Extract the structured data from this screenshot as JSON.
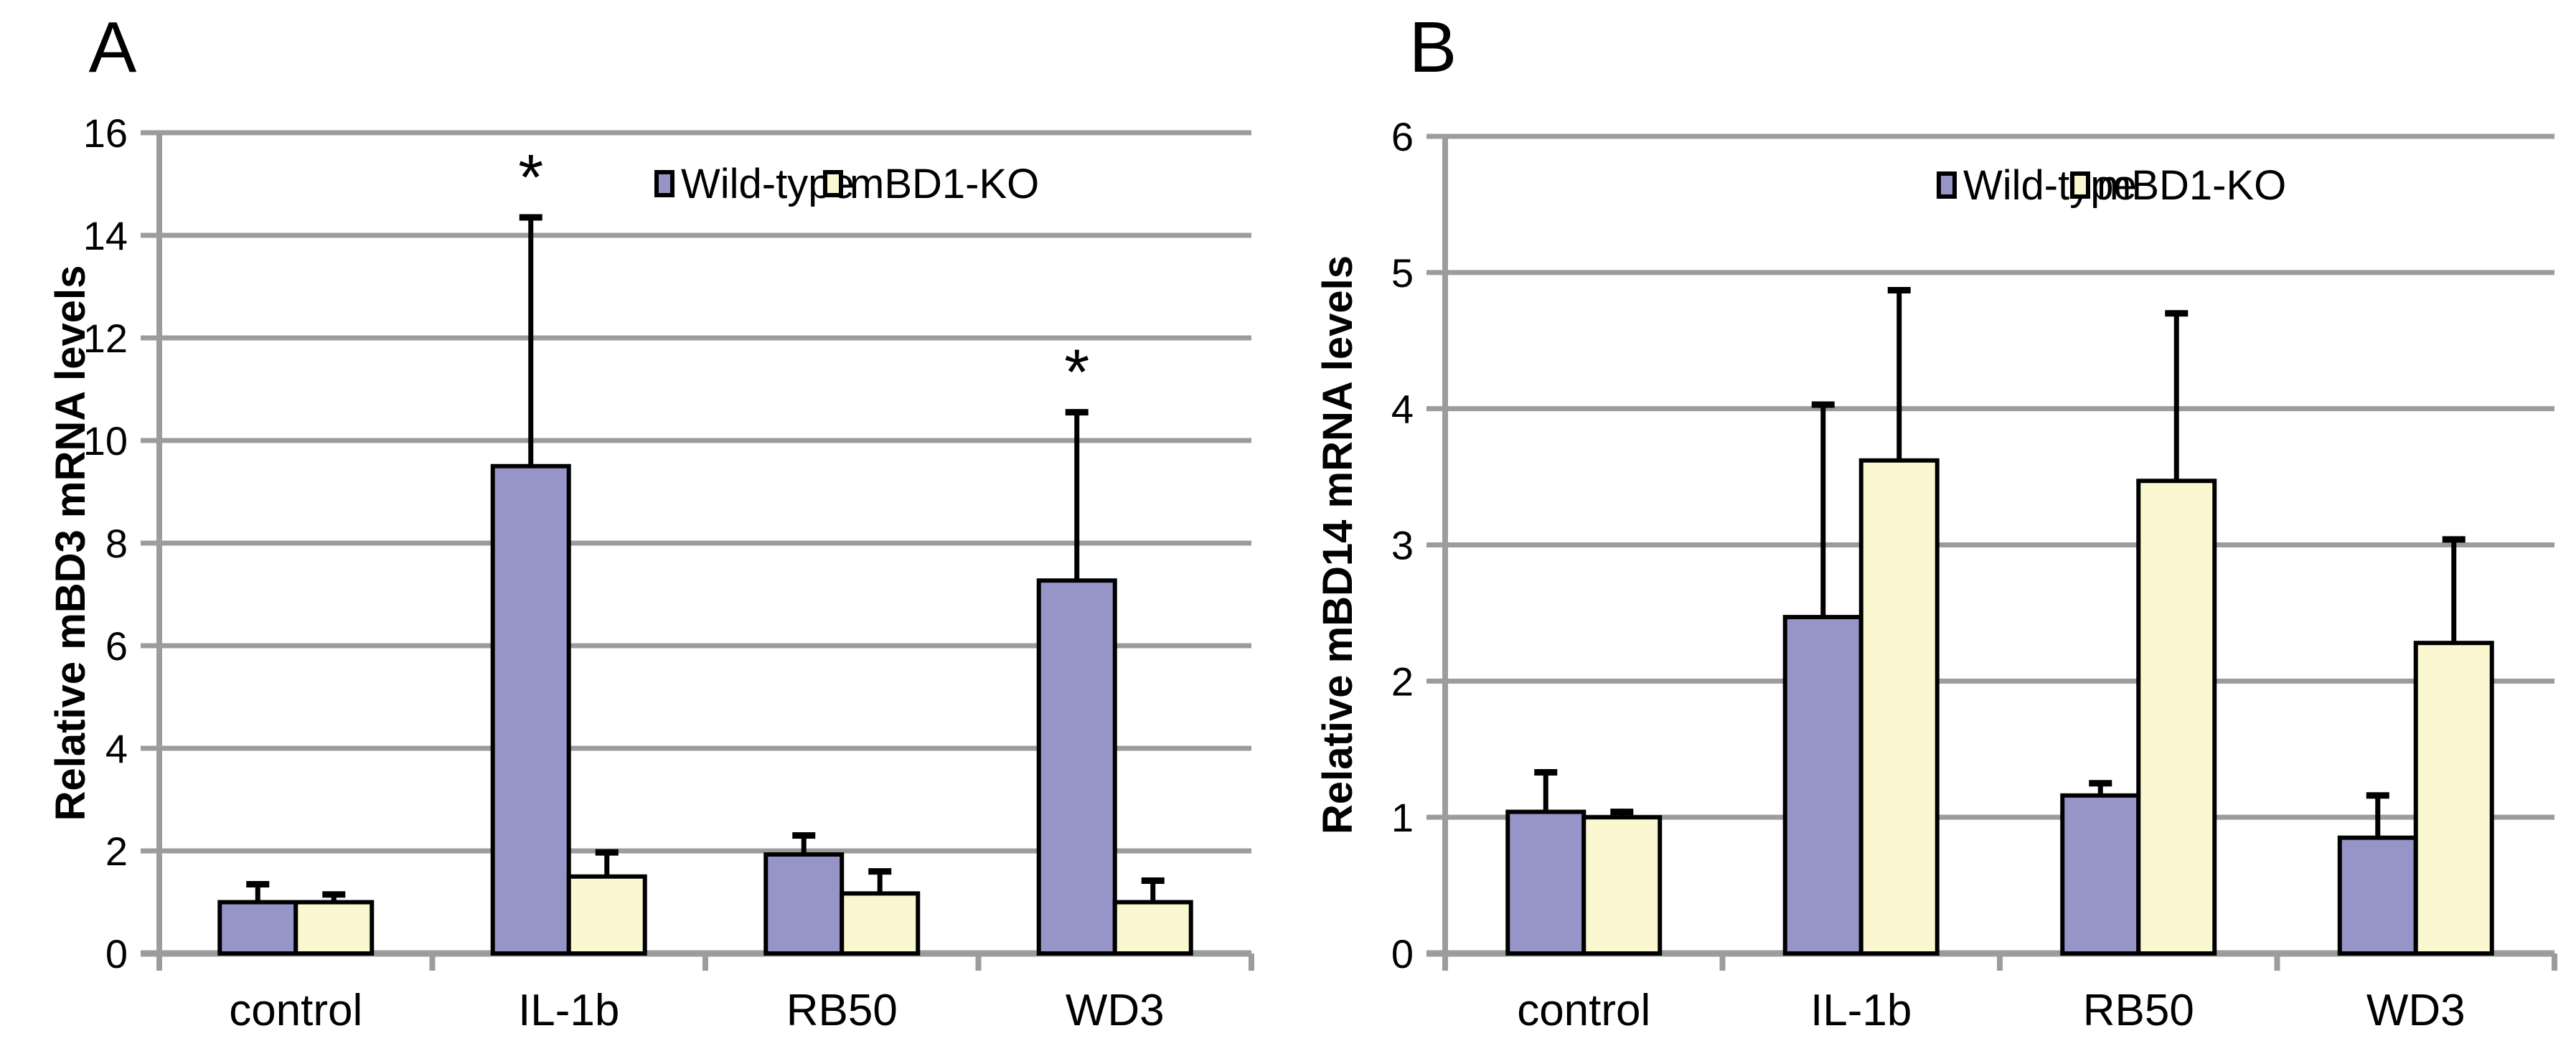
{
  "figure": {
    "background": "#ffffff",
    "description": "Two-panel grouped bar chart comparing relative beta-defensin mRNA levels in Wild-type vs mBD1-KO under four treatments"
  },
  "styles": {
    "grid_color": "#9C9C9C",
    "axis_color": "#9C9C9C",
    "bar_border_color": "#000000",
    "error_color": "#000000",
    "text_color": "#000000",
    "wildtype_fill": "#9795C7",
    "ko_fill": "#FBF8D1"
  },
  "chart_data": [
    {
      "type": "bar",
      "panel_label": "A",
      "title": "",
      "xlabel": "",
      "ylabel": "Relative mBD3 mRNA levels",
      "categories": [
        "control",
        "IL-1b",
        "RB50",
        "WD3"
      ],
      "series": [
        {
          "name": "Wild-type",
          "color": "#9795C7",
          "values": [
            1.0,
            9.5,
            1.93,
            7.27
          ],
          "errors_up": [
            0.35,
            4.85,
            0.37,
            3.28
          ]
        },
        {
          "name": "mBD1-KO",
          "color": "#FBF8D1",
          "values": [
            1.0,
            1.5,
            1.17,
            1.0
          ],
          "errors_up": [
            0.15,
            0.47,
            0.43,
            0.42
          ]
        }
      ],
      "ylim": [
        0,
        16
      ],
      "yticks": [
        "0",
        "2",
        "4",
        "6",
        "8",
        "10",
        "12",
        "14",
        "16"
      ],
      "grid": true,
      "legend_position": "top-inside",
      "annotations": [
        {
          "category": "IL-1b",
          "series": "Wild-type",
          "text": "*"
        },
        {
          "category": "WD3",
          "series": "Wild-type",
          "text": "*"
        }
      ]
    },
    {
      "type": "bar",
      "panel_label": "B",
      "title": "",
      "xlabel": "",
      "ylabel": "Relative mBD14 mRNA levels",
      "categories": [
        "control",
        "IL-1b",
        "RB50",
        "WD3"
      ],
      "series": [
        {
          "name": "Wild-type",
          "color": "#9795C7",
          "values": [
            1.04,
            2.47,
            1.16,
            0.85
          ],
          "errors_up": [
            0.29,
            1.56,
            0.09,
            0.31
          ]
        },
        {
          "name": "mBD1-KO",
          "color": "#FBF8D1",
          "values": [
            1.0,
            3.62,
            3.47,
            2.28
          ],
          "errors_up": [
            0.04,
            1.25,
            1.23,
            0.76
          ]
        }
      ],
      "ylim": [
        0,
        6
      ],
      "yticks": [
        "0",
        "1",
        "2",
        "3",
        "4",
        "5",
        "6"
      ],
      "grid": true,
      "legend_position": "top-inside",
      "annotations": []
    }
  ]
}
